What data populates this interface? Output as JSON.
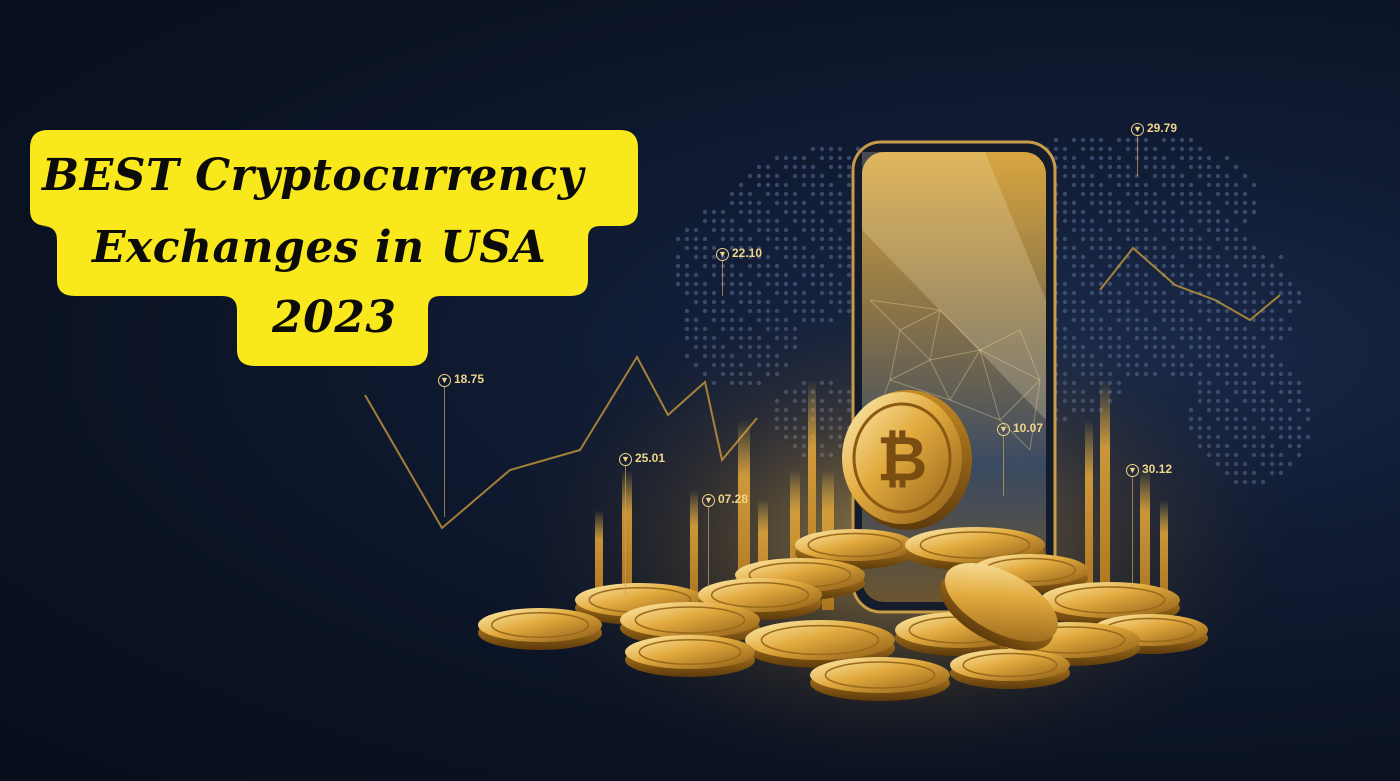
{
  "headline": {
    "line1": "BEST Cryptocurrency",
    "line2": "Exchanges in USA",
    "line3": "2023",
    "bg_color": "#f9e81c",
    "text_color": "#0b0b0b"
  },
  "price_markers": [
    {
      "label": "29.79"
    },
    {
      "label": "22.10"
    },
    {
      "label": "18.75"
    },
    {
      "label": "10.07"
    },
    {
      "label": "25.01"
    },
    {
      "label": "30.12"
    },
    {
      "label": "07.28"
    }
  ],
  "icons": {
    "coin_symbol": "bitcoin-icon",
    "marker_symbol": "down-triangle-icon"
  },
  "colors": {
    "background": "#0c1527",
    "gold": "#d9a53c",
    "gold_light": "#f5d67e",
    "map_dots": "#5a6e96"
  }
}
